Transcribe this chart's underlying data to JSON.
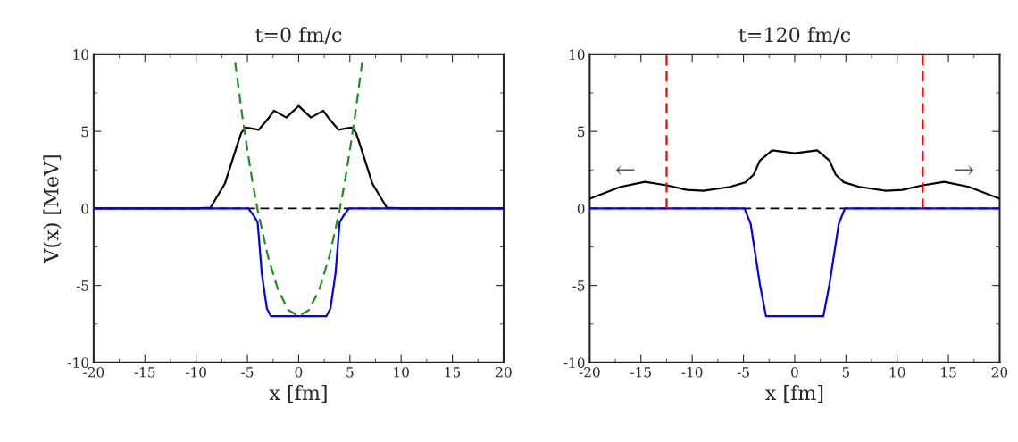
{
  "chart_data": [
    {
      "type": "line",
      "title": "t=0 fm/c",
      "xlabel": "x [fm]",
      "ylabel": "V(x) [MeV]",
      "xlim": [
        -20,
        20
      ],
      "ylim": [
        -10,
        10
      ],
      "xticks": [
        -20,
        -15,
        -10,
        -5,
        0,
        5,
        10,
        15,
        20
      ],
      "yticks": [
        -10,
        -5,
        0,
        5,
        10
      ],
      "grid": false,
      "legend": false,
      "marker": "none",
      "ref_lines": [
        {
          "axis": "y",
          "value": 0,
          "color": "#000000",
          "line_style": "dashed"
        }
      ],
      "series": [
        {
          "color": "#000000",
          "line_style": "solid",
          "x": [
            -20,
            -10,
            -8.6,
            -7.2,
            -6,
            -5.6,
            -5.2,
            -4.7,
            -3.9,
            -3,
            -2.4,
            -1.2,
            0,
            1.2,
            2.4,
            3,
            3.9,
            4.7,
            5.2,
            5.6,
            6,
            7.2,
            8.6,
            10,
            20
          ],
          "values": [
            0,
            0,
            0.05,
            1.6,
            4.1,
            4.9,
            5.25,
            5.2,
            5.1,
            5.8,
            6.35,
            5.9,
            6.65,
            5.9,
            6.35,
            5.8,
            5.1,
            5.2,
            5.25,
            4.9,
            4.1,
            1.6,
            0.05,
            0,
            0
          ]
        },
        {
          "color": "#0000ff",
          "line_style": "solid",
          "x": [
            -20,
            -4.9,
            -4.35,
            -4,
            -3.6,
            -3.1,
            -2.7,
            2.7,
            3.1,
            3.6,
            4,
            4.35,
            4.9,
            20
          ],
          "values": [
            0,
            0,
            -0.5,
            -0.9,
            -4.2,
            -6.5,
            -7,
            -7,
            -6.5,
            -4.2,
            -0.9,
            -0.5,
            0,
            0
          ]
        },
        {
          "color": "#228b22",
          "line_style": "dashed",
          "x": [
            -6.2,
            -5.5,
            -5,
            -4.5,
            -4,
            -3,
            -2,
            -1,
            0,
            1,
            2,
            3,
            4,
            4.5,
            5,
            5.5,
            6.2
          ],
          "values": [
            9.5,
            6,
            3.8,
            1.7,
            -0.1,
            -3.1,
            -5.3,
            -6.6,
            -7,
            -6.6,
            -5.3,
            -3.1,
            -0.1,
            1.7,
            3.8,
            6,
            9.5
          ]
        }
      ]
    },
    {
      "type": "line",
      "title": "t=120 fm/c",
      "xlabel": "x [fm]",
      "xlim": [
        -20,
        20
      ],
      "ylim": [
        -10,
        10
      ],
      "xticks": [
        -20,
        -15,
        -10,
        -5,
        0,
        5,
        10,
        15,
        20
      ],
      "yticks": [
        -10,
        -5,
        0,
        5,
        10
      ],
      "grid": false,
      "legend": false,
      "marker": "none",
      "ref_lines": [
        {
          "axis": "y",
          "value": 0,
          "color": "#000000",
          "line_style": "dashed"
        }
      ],
      "annotations": [
        "←",
        "→"
      ],
      "series": [
        {
          "color": "#000000",
          "line_style": "solid",
          "x": [
            -20,
            -17,
            -14.6,
            -12.5,
            -10.5,
            -8.9,
            -6.3,
            -4.8,
            -4,
            -3.4,
            -2.2,
            0,
            2.2,
            3.4,
            4,
            4.8,
            6.3,
            8.9,
            10.5,
            12.5,
            14.6,
            17,
            20
          ],
          "values": [
            0.63,
            1.4,
            1.73,
            1.5,
            1.2,
            1.15,
            1.4,
            1.7,
            2.2,
            3.1,
            3.77,
            3.58,
            3.77,
            3.1,
            2.2,
            1.7,
            1.4,
            1.15,
            1.2,
            1.5,
            1.73,
            1.4,
            0.63
          ]
        },
        {
          "color": "#0000ff",
          "line_style": "solid",
          "x": [
            -20,
            -4.9,
            -4.3,
            -3.4,
            -2.8,
            2.8,
            3.4,
            4.3,
            4.9,
            20
          ],
          "values": [
            0,
            0,
            -1,
            -4.9,
            -7,
            -7,
            -4.9,
            -1,
            0,
            0
          ]
        },
        {
          "color": "#ff0000",
          "line_style": "dashed",
          "x": [
            -12.5,
            -12.5
          ],
          "values": [
            0,
            10
          ]
        },
        {
          "color": "#ff0000",
          "line_style": "dashed",
          "x": [
            12.5,
            12.5
          ],
          "values": [
            0,
            10
          ]
        }
      ]
    }
  ]
}
